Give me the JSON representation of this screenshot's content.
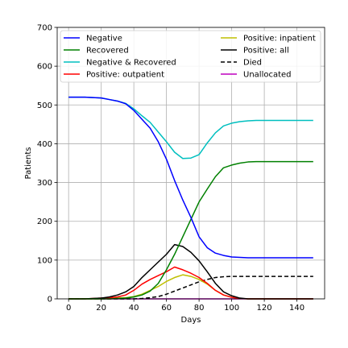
{
  "chart_data": {
    "type": "line",
    "title": "",
    "xlabel": "Days",
    "ylabel": "Patients",
    "xlim": [
      -7,
      157
    ],
    "ylim": [
      0,
      700
    ],
    "xticks": [
      "0",
      "20",
      "40",
      "60",
      "80",
      "100",
      "120",
      "140"
    ],
    "yticks": [
      "0",
      "100",
      "200",
      "300",
      "400",
      "500",
      "600",
      "700"
    ],
    "grid": true,
    "legend_position": "top",
    "legend_columns": 2,
    "x": [
      0,
      5,
      10,
      15,
      20,
      25,
      30,
      35,
      40,
      45,
      50,
      55,
      60,
      65,
      70,
      75,
      80,
      85,
      90,
      95,
      100,
      105,
      110,
      115,
      120,
      125,
      130,
      135,
      140,
      145,
      150
    ],
    "series": [
      {
        "name": "Negative",
        "color": "#0000ff",
        "dash": "solid",
        "values": [
          520,
          520,
          520,
          519,
          518,
          514,
          510,
          503,
          486,
          463,
          440,
          405,
          360,
          305,
          255,
          210,
          160,
          132,
          118,
          112,
          108,
          107,
          106,
          106,
          106,
          106,
          106,
          106,
          106,
          106,
          106
        ]
      },
      {
        "name": "Recovered",
        "color": "#008000",
        "dash": "solid",
        "values": [
          0,
          0,
          0,
          0,
          0,
          0,
          1,
          2,
          5,
          10,
          20,
          40,
          75,
          115,
          160,
          205,
          250,
          283,
          315,
          338,
          345,
          350,
          353,
          354,
          354,
          354,
          354,
          354,
          354,
          354,
          354
        ]
      },
      {
        "name": "Negative & Recovered",
        "color": "#00bfbf",
        "dash": "solid",
        "values": [
          520,
          520,
          520,
          519,
          518,
          514,
          510,
          504,
          490,
          472,
          455,
          430,
          405,
          378,
          362,
          363,
          372,
          402,
          428,
          446,
          453,
          457,
          459,
          460,
          460,
          460,
          460,
          460,
          460,
          460,
          460
        ]
      },
      {
        "name": "Positive: outpatient",
        "color": "#ff0000",
        "dash": "solid",
        "values": [
          0,
          0,
          0,
          1,
          2,
          3,
          5,
          10,
          22,
          38,
          50,
          60,
          70,
          82,
          75,
          66,
          55,
          40,
          22,
          10,
          4,
          1,
          0,
          0,
          0,
          0,
          0,
          0,
          0,
          0,
          0
        ]
      },
      {
        "name": "Positive: inpatient",
        "color": "#bfbf00",
        "dash": "solid",
        "values": [
          0,
          0,
          0,
          0,
          0,
          1,
          2,
          3,
          6,
          12,
          22,
          32,
          45,
          55,
          62,
          58,
          50,
          38,
          22,
          10,
          4,
          1,
          0,
          0,
          0,
          0,
          0,
          0,
          0,
          0,
          0
        ]
      },
      {
        "name": "Positive: all",
        "color": "#000000",
        "dash": "solid",
        "values": [
          0,
          0,
          0,
          1,
          2,
          5,
          10,
          18,
          32,
          55,
          75,
          95,
          115,
          140,
          135,
          120,
          98,
          70,
          40,
          18,
          8,
          2,
          0,
          0,
          0,
          0,
          0,
          0,
          0,
          0,
          0
        ]
      },
      {
        "name": "Died",
        "color": "#000000",
        "dash": "dashed",
        "values": [
          0,
          0,
          0,
          0,
          0,
          0,
          0,
          0,
          0,
          1,
          3,
          6,
          12,
          20,
          28,
          36,
          44,
          50,
          55,
          57,
          58,
          58,
          58,
          58,
          58,
          58,
          58,
          58,
          58,
          58,
          58
        ]
      },
      {
        "name": "Unallocated",
        "color": "#bf00bf",
        "dash": "solid",
        "values": [
          0,
          0,
          0,
          0,
          0,
          0,
          0,
          0,
          0,
          0,
          0,
          0,
          0,
          0,
          0,
          0,
          0,
          0,
          0,
          0,
          0,
          0,
          0,
          0,
          0,
          0,
          0,
          0,
          0,
          0,
          0
        ]
      }
    ]
  }
}
